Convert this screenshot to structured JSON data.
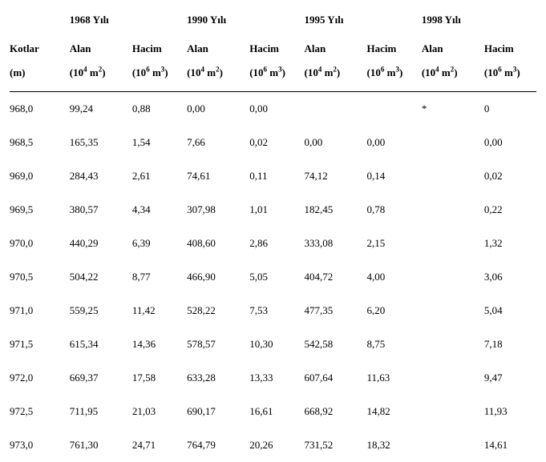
{
  "head": {
    "kotlar": "Kotlar",
    "kotlar_unit": "(m)",
    "years": {
      "y1": "1968 Yılı",
      "y2": "1990 Yılı",
      "y3": "1995 Yılı",
      "y4": "1998 Yılı"
    },
    "alan": "Alan",
    "hacim": "Hacim",
    "alan_unit_pre": "(10",
    "alan_unit_sup": "4",
    "alan_unit_post": " m",
    "alan_unit_sup2": "2",
    "alan_unit_close": ")",
    "hacim_unit_pre": "(10",
    "hacim_unit_sup": "6",
    "hacim_unit_post": " m",
    "hacim_unit_sup2": "3",
    "hacim_unit_close": ")"
  },
  "rows": [
    {
      "k": "968,0",
      "a1": "99,24",
      "h1": "0,88",
      "a2": "0,00",
      "h2": "0,00",
      "a3": "",
      "h3": "",
      "a4": "*",
      "h4": "0"
    },
    {
      "k": "968,5",
      "a1": "165,35",
      "h1": "1,54",
      "a2": "7,66",
      "h2": "0,02",
      "a3": "0,00",
      "h3": "0,00",
      "a4": "",
      "h4": "0,00"
    },
    {
      "k": "969,0",
      "a1": "284,43",
      "h1": "2,61",
      "a2": "74,61",
      "h2": "0,11",
      "a3": "74,12",
      "h3": "0,14",
      "a4": "",
      "h4": "0,02"
    },
    {
      "k": "969,5",
      "a1": "380,57",
      "h1": "4,34",
      "a2": "307,98",
      "h2": "1,01",
      "a3": "182,45",
      "h3": "0,78",
      "a4": "",
      "h4": "0,22"
    },
    {
      "k": "970,0",
      "a1": "440,29",
      "h1": "6,39",
      "a2": "408,60",
      "h2": "2,86",
      "a3": "333,08",
      "h3": "2,15",
      "a4": "",
      "h4": "1,32"
    },
    {
      "k": "970,5",
      "a1": "504,22",
      "h1": "8,77",
      "a2": "466,90",
      "h2": "5,05",
      "a3": "404,72",
      "h3": "4,00",
      "a4": "",
      "h4": "3,06"
    },
    {
      "k": "971,0",
      "a1": "559,25",
      "h1": "11,42",
      "a2": "528,22",
      "h2": "7,53",
      "a3": "477,35",
      "h3": "6,20",
      "a4": "",
      "h4": "5,04"
    },
    {
      "k": "971,5",
      "a1": "615,34",
      "h1": "14,36",
      "a2": "578,57",
      "h2": "10,30",
      "a3": "542,58",
      "h3": "8,75",
      "a4": "",
      "h4": "7,18"
    },
    {
      "k": "972,0",
      "a1": "669,37",
      "h1": "17,58",
      "a2": "633,28",
      "h2": "13,33",
      "a3": "607,64",
      "h3": "11,63",
      "a4": "",
      "h4": "9,47"
    },
    {
      "k": "972,5",
      "a1": "711,95",
      "h1": "21,03",
      "a2": "690,17",
      "h2": "16,61",
      "a3": "668,92",
      "h3": "14,82",
      "a4": "",
      "h4": "11,93"
    },
    {
      "k": "973,0",
      "a1": "761,30",
      "h1": "24,71",
      "a2": "764,79",
      "h2": "20,26",
      "a3": "731,52",
      "h3": "18,32",
      "a4": "",
      "h4": "14,61"
    }
  ]
}
